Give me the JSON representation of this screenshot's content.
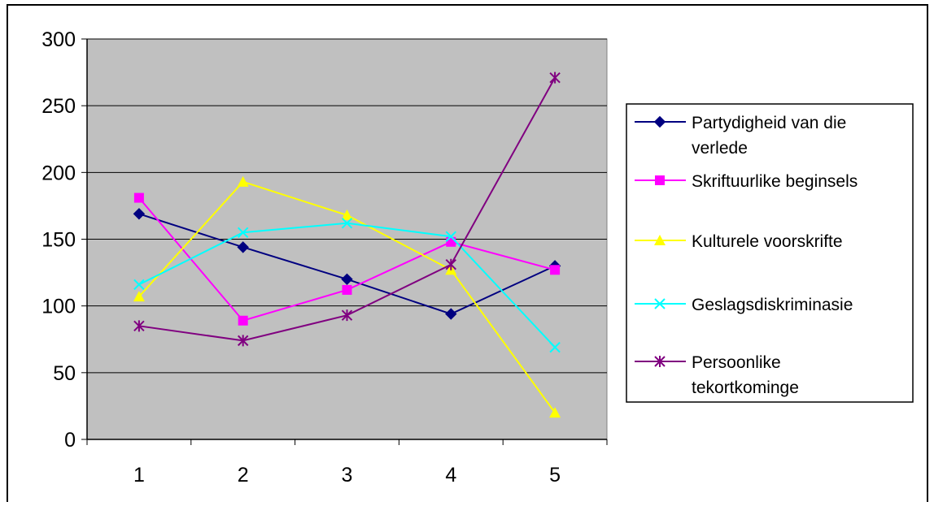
{
  "chart_data": {
    "type": "line",
    "title": "",
    "xlabel": "",
    "ylabel": "",
    "categories": [
      "1",
      "2",
      "3",
      "4",
      "5"
    ],
    "ylim": [
      0,
      300
    ],
    "yticks": [
      "0",
      "50",
      "100",
      "150",
      "200",
      "250",
      "300"
    ],
    "grid": true,
    "plot_background": "#c0c0c0",
    "legend_position": "right",
    "series": [
      {
        "name": "Partydigheid van die verlede",
        "legend_lines": [
          "Partydigheid van die",
          "verlede"
        ],
        "color": "#000080",
        "marker": "diamond",
        "values": [
          169,
          144,
          120,
          94,
          130
        ]
      },
      {
        "name": "Skrifuurlike beginsels",
        "legend_lines": [
          "Skriftuurlike beginsels"
        ],
        "color": "#ff00ff",
        "marker": "square",
        "values": [
          181,
          89,
          112,
          148,
          127
        ]
      },
      {
        "name": "Kulturele voorskrifte",
        "legend_lines": [
          "Kulturele voorskrifte"
        ],
        "color": "#ffff00",
        "marker": "triangle",
        "values": [
          107,
          193,
          168,
          127,
          20
        ]
      },
      {
        "name": "Geslagsdiskriminasie",
        "legend_lines": [
          "Geslagsdiskriminasie"
        ],
        "color": "#00ffff",
        "marker": "x",
        "values": [
          116,
          155,
          162,
          152,
          69
        ]
      },
      {
        "name": "Persoonlike tekortkominge",
        "legend_lines": [
          "Persoonlike",
          "tekortkominge"
        ],
        "color": "#800080",
        "marker": "star",
        "values": [
          85,
          74,
          93,
          131,
          271
        ]
      }
    ]
  }
}
